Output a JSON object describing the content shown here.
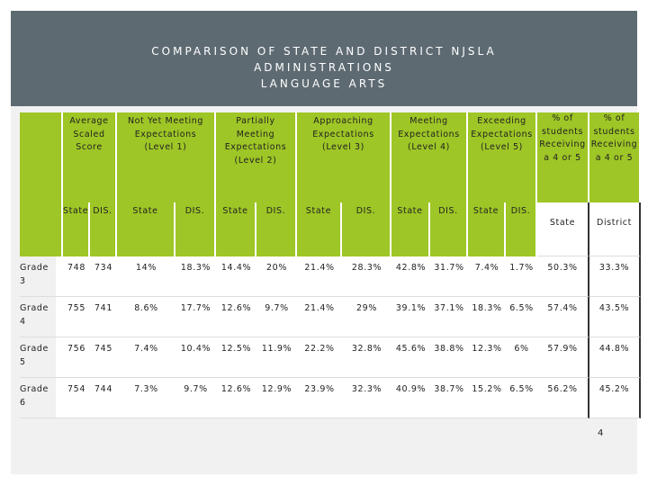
{
  "header": {
    "title": [
      "COMPARISON OF STATE AND DISTRICT NJSLA",
      "ADMINISTRATIONS",
      "LANGUAGE ARTS"
    ]
  },
  "table": {
    "groups": [
      {
        "lines": [
          "Average",
          "Scaled",
          "Score"
        ]
      },
      {
        "lines": [
          "Not Yet Meeting",
          "Expectations",
          "(Level 1)"
        ]
      },
      {
        "lines": [
          "Partially",
          "Meeting",
          "Expectations",
          "(Level 2)"
        ]
      },
      {
        "lines": [
          "Approaching",
          "Expectations",
          "(Level 3)"
        ]
      },
      {
        "lines": [
          "Meeting",
          "Expectations",
          "(Level 4)"
        ]
      },
      {
        "lines": [
          "Exceeding",
          "Expectations",
          "(Level 5)"
        ]
      },
      {
        "lines": [
          "% of",
          "students",
          "Receiving",
          "a 4 or 5"
        ]
      },
      {
        "lines": [
          "% of",
          "students",
          "Receiving",
          "a 4 or 5"
        ]
      }
    ],
    "subheaders": [
      "State",
      "DIS.",
      "State",
      "DIS.",
      "State",
      "DIS.",
      "State",
      "DIS.",
      "State",
      "DIS.",
      "State",
      "DIS.",
      "State",
      "District"
    ],
    "rows": [
      {
        "label": "Grade 3",
        "cells": [
          "748",
          "734",
          "14%",
          "18.3%",
          "14.4%",
          "20%",
          "21.4%",
          "28.3%",
          "42.8%",
          "31.7%",
          "7.4%",
          "1.7%",
          "50.3%",
          "33.3%"
        ]
      },
      {
        "label": "Grade 4",
        "cells": [
          "755",
          "741",
          "8.6%",
          "17.7%",
          "12.6%",
          "9.7%",
          "21.4%",
          "29%",
          "39.1%",
          "37.1%",
          "18.3%",
          "6.5%",
          "57.4%",
          "43.5%"
        ]
      },
      {
        "label": "Grade 5",
        "cells": [
          "756",
          "745",
          "7.4%",
          "10.4%",
          "12.5%",
          "11.9%",
          "22.2%",
          "32.8%",
          "45.6%",
          "38.8%",
          "12.3%",
          "6%",
          "57.9%",
          "44.8%"
        ]
      },
      {
        "label": "Grade 6",
        "cells": [
          "754",
          "744",
          "7.3%",
          "9.7%",
          "12.6%",
          "12.9%",
          "23.9%",
          "32.3%",
          "40.9%",
          "38.7%",
          "15.2%",
          "6.5%",
          "56.2%",
          "45.2%"
        ]
      }
    ]
  },
  "page_number": "4"
}
